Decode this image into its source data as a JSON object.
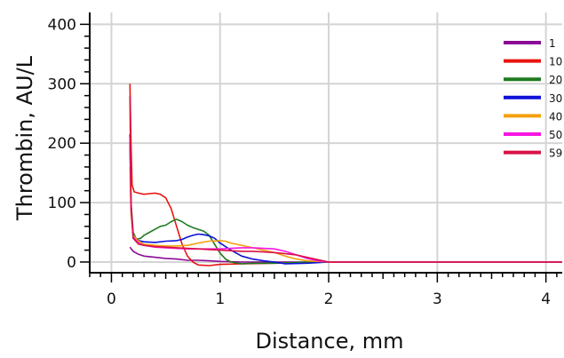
{
  "chart_data": {
    "type": "line",
    "title": "",
    "xlabel": "Distance, mm",
    "ylabel": "Thrombin, AU/L",
    "xlim": [
      -0.2,
      4.15
    ],
    "ylim": [
      -18,
      420
    ],
    "xticks": [
      0,
      1,
      2,
      3,
      4
    ],
    "yticks": [
      0,
      100,
      200,
      300,
      400
    ],
    "grid": true,
    "legend": "top-right",
    "series": [
      {
        "name": "1",
        "color": "#8B0A96",
        "x": [
          0.17,
          0.2,
          0.25,
          0.3,
          0.4,
          0.5,
          0.6,
          0.7,
          0.8,
          0.9,
          1.0,
          1.2,
          1.5,
          2.0,
          2.5,
          3.0,
          3.5,
          4.15
        ],
        "y": [
          25,
          18,
          13,
          10,
          8,
          6,
          5,
          3,
          3,
          2,
          1,
          0,
          0,
          0,
          0,
          0,
          0,
          0
        ]
      },
      {
        "name": "10",
        "color": "#E8140F",
        "x": [
          0.17,
          0.18,
          0.19,
          0.21,
          0.25,
          0.3,
          0.35,
          0.4,
          0.45,
          0.5,
          0.55,
          0.6,
          0.65,
          0.7,
          0.75,
          0.8,
          0.9,
          1.0,
          1.2,
          1.5,
          2.0,
          2.5,
          3.0,
          3.5,
          4.15
        ],
        "y": [
          300,
          200,
          130,
          118,
          116,
          114,
          115,
          116,
          114,
          108,
          90,
          60,
          30,
          10,
          0,
          -5,
          -6,
          -4,
          -3,
          -2,
          0,
          0,
          0,
          0,
          0
        ]
      },
      {
        "name": "20",
        "color": "#1E7B1E",
        "x": [
          0.17,
          0.18,
          0.2,
          0.23,
          0.27,
          0.3,
          0.35,
          0.4,
          0.45,
          0.5,
          0.55,
          0.6,
          0.65,
          0.7,
          0.75,
          0.8,
          0.85,
          0.9,
          0.95,
          1.0,
          1.05,
          1.1,
          1.2,
          1.3,
          1.5,
          1.8,
          2.0,
          2.5,
          3.0,
          3.5,
          4.15
        ],
        "y": [
          200,
          100,
          50,
          38,
          40,
          45,
          50,
          55,
          60,
          62,
          68,
          72,
          68,
          62,
          58,
          55,
          52,
          45,
          30,
          15,
          5,
          0,
          -3,
          -2,
          -2,
          0,
          0,
          0,
          0,
          0,
          0
        ]
      },
      {
        "name": "30",
        "color": "#0E10D8",
        "x": [
          0.17,
          0.18,
          0.2,
          0.25,
          0.3,
          0.4,
          0.5,
          0.6,
          0.65,
          0.7,
          0.75,
          0.8,
          0.85,
          0.9,
          0.95,
          1.0,
          1.1,
          1.2,
          1.3,
          1.4,
          1.5,
          1.6,
          1.8,
          2.0,
          2.5,
          3.0,
          3.5,
          4.15
        ],
        "y": [
          215,
          90,
          45,
          36,
          34,
          33,
          35,
          36,
          38,
          42,
          45,
          47,
          46,
          44,
          40,
          32,
          20,
          10,
          5,
          2,
          0,
          -3,
          -2,
          0,
          0,
          0,
          0,
          0
        ]
      },
      {
        "name": "40",
        "color": "#F5A00F",
        "x": [
          0.17,
          0.18,
          0.2,
          0.25,
          0.3,
          0.4,
          0.5,
          0.6,
          0.7,
          0.8,
          0.9,
          1.0,
          1.05,
          1.1,
          1.2,
          1.3,
          1.4,
          1.5,
          1.6,
          1.7,
          1.8,
          2.0,
          2.5,
          3.0,
          3.5,
          4.15
        ],
        "y": [
          160,
          80,
          45,
          35,
          30,
          28,
          27,
          27,
          28,
          32,
          35,
          36,
          35,
          32,
          28,
          24,
          20,
          16,
          10,
          5,
          2,
          0,
          0,
          0,
          0,
          0
        ]
      },
      {
        "name": "50",
        "color": "#F515E0",
        "x": [
          0.17,
          0.18,
          0.2,
          0.25,
          0.3,
          0.4,
          0.5,
          0.6,
          0.7,
          0.8,
          0.9,
          1.0,
          1.1,
          1.2,
          1.3,
          1.4,
          1.5,
          1.6,
          1.7,
          1.8,
          1.9,
          2.0,
          2.5,
          3.0,
          3.5,
          4.15
        ],
        "y": [
          210,
          90,
          42,
          32,
          28,
          25,
          24,
          23,
          22,
          22,
          22,
          22,
          23,
          24,
          24,
          23,
          22,
          18,
          12,
          6,
          2,
          0,
          0,
          0,
          0,
          0
        ]
      },
      {
        "name": "59",
        "color": "#D81245",
        "x": [
          0.17,
          0.18,
          0.2,
          0.25,
          0.3,
          0.4,
          0.5,
          0.6,
          0.7,
          0.8,
          0.9,
          1.0,
          1.1,
          1.2,
          1.3,
          1.4,
          1.5,
          1.6,
          1.7,
          1.8,
          1.9,
          2.0,
          2.5,
          3.0,
          3.5,
          4.15
        ],
        "y": [
          280,
          100,
          40,
          30,
          28,
          26,
          25,
          24,
          23,
          22,
          21,
          20,
          19,
          18,
          18,
          17,
          16,
          14,
          12,
          8,
          4,
          0,
          0,
          0,
          0,
          0
        ]
      }
    ]
  }
}
